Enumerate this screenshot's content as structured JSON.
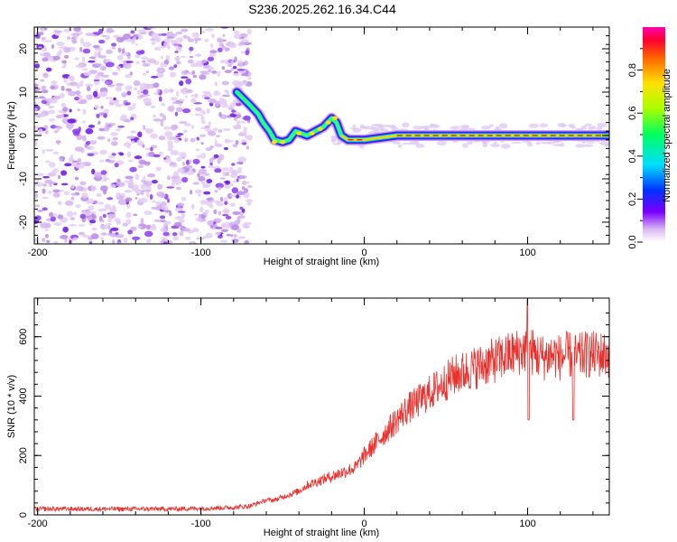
{
  "title": "S236.2025.262.16.34.C44",
  "chart_data": [
    {
      "type": "heatmap",
      "name": "spectrogram",
      "xlabel": "Height of straight line (km)",
      "ylabel": "Frequency (Hz)",
      "xlim": [
        -202,
        150
      ],
      "ylim": [
        -25,
        25
      ],
      "xticks": [
        -200,
        -100,
        0,
        100
      ],
      "yticks": [
        -20,
        -10,
        0,
        10,
        20
      ],
      "track": [
        {
          "x": -78,
          "y": 10
        },
        {
          "x": -70,
          "y": 7
        },
        {
          "x": -65,
          "y": 5
        },
        {
          "x": -62,
          "y": 3
        },
        {
          "x": -58,
          "y": 1
        },
        {
          "x": -55,
          "y": -1
        },
        {
          "x": -50,
          "y": -1.5
        },
        {
          "x": -46,
          "y": -1
        },
        {
          "x": -42,
          "y": 1
        },
        {
          "x": -35,
          "y": 0
        },
        {
          "x": -30,
          "y": 1
        },
        {
          "x": -25,
          "y": 2
        },
        {
          "x": -20,
          "y": 4
        },
        {
          "x": -17,
          "y": 3
        },
        {
          "x": -14,
          "y": 0
        },
        {
          "x": -10,
          "y": -1
        },
        {
          "x": 0,
          "y": -1
        },
        {
          "x": 20,
          "y": 0
        },
        {
          "x": 150,
          "y": 0
        }
      ],
      "colorbar": {
        "label": "Normalized spectral amplitude",
        "ticks": [
          "0.0",
          "0.2",
          "0.4",
          "0.6",
          "0.8"
        ],
        "range": [
          0,
          1
        ]
      }
    },
    {
      "type": "line",
      "name": "snr",
      "xlabel": "Height of straight line (km)",
      "ylabel": "SNR (10 * v/v)",
      "xlim": [
        -202,
        150
      ],
      "ylim": [
        0,
        730
      ],
      "xticks": [
        -200,
        -100,
        0,
        100
      ],
      "yticks": [
        0,
        200,
        400,
        600
      ],
      "series": [
        {
          "name": "SNR",
          "color": "#e8302c",
          "x": [
            -202,
            -180,
            -150,
            -120,
            -100,
            -80,
            -70,
            -65,
            -60,
            -55,
            -50,
            -45,
            -40,
            -35,
            -30,
            -25,
            -20,
            -15,
            -10,
            -5,
            0,
            5,
            10,
            15,
            20,
            25,
            30,
            35,
            40,
            45,
            50,
            55,
            60,
            65,
            70,
            75,
            80,
            85,
            90,
            95,
            100,
            105,
            110,
            115,
            120,
            125,
            130,
            135,
            140,
            145,
            150
          ],
          "y": [
            20,
            20,
            20,
            20,
            22,
            25,
            30,
            40,
            50,
            50,
            60,
            70,
            80,
            100,
            110,
            120,
            130,
            140,
            150,
            160,
            200,
            230,
            260,
            290,
            320,
            350,
            370,
            390,
            410,
            430,
            450,
            470,
            480,
            490,
            500,
            510,
            520,
            530,
            540,
            550,
            560,
            540,
            530,
            540,
            530,
            540,
            530,
            540,
            540,
            540,
            540
          ]
        }
      ]
    }
  ]
}
